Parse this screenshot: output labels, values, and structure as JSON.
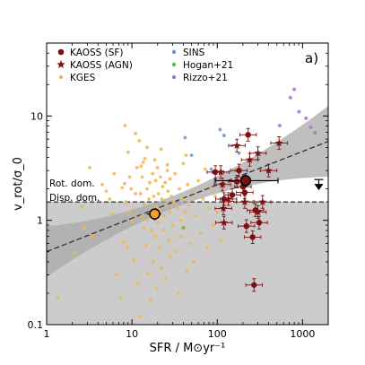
{
  "chart_data": {
    "type": "scatter",
    "panel_label": "a)",
    "xlabel": "SFR / M⊙yr⁻¹",
    "ylabel": "v_rot/σ_0",
    "xlim": [
      1,
      2000
    ],
    "ylim": [
      0.1,
      50
    ],
    "xscale": "log",
    "yscale": "log",
    "x_ticks": [
      {
        "value": 1,
        "label": "1"
      },
      {
        "value": 10,
        "label": "10"
      },
      {
        "value": 100,
        "label": "100"
      },
      {
        "value": 1000,
        "label": "1000"
      }
    ],
    "y_ticks": [
      {
        "value": 0.1,
        "label": "0.1"
      },
      {
        "value": 1,
        "label": "1"
      },
      {
        "value": 10,
        "label": "10"
      }
    ],
    "threshold": {
      "y": 1.5,
      "label_above": "Rot. dom.",
      "label_below": "Disp. dom."
    },
    "legend": {
      "placement": "top",
      "entries": [
        {
          "label": "KAOSS (SF)",
          "marker": "circle",
          "color": "#7a1010"
        },
        {
          "label": "KAOSS (AGN)",
          "marker": "star",
          "color": "#7a1010"
        },
        {
          "label": "KGES",
          "marker": "dot",
          "color": "#f0b455"
        },
        {
          "label": "SINS",
          "marker": "dot",
          "color": "#6b8fcf"
        },
        {
          "label": "Hogan+21",
          "marker": "dot",
          "color": "#5cb85c"
        },
        {
          "label": "Rizzo+21",
          "marker": "dot",
          "color": "#a573c9"
        }
      ]
    },
    "colors": {
      "kaoss": "#7a1010",
      "kges": "#f0b455",
      "sins": "#6b8fcf",
      "hogan": "#5cb85c",
      "rizzo": "#a573c9",
      "fit_band": "#a9a9a9",
      "disp_region": "#cccccc",
      "kges_median": "#f0a030"
    },
    "fit": {
      "slope": 0.32,
      "intercept_log": -0.3,
      "band_halfwidth_dex_at_pivot": 0.06,
      "band_halfwidth_dex_at_edges": 0.34,
      "pivot_x": 30
    },
    "series": [
      {
        "name": "KGES",
        "points": [
          [
            1.35,
            0.18
          ],
          [
            2.1,
            0.48
          ],
          [
            2.6,
            1.35
          ],
          [
            2.8,
            0.85
          ],
          [
            3.2,
            3.2
          ],
          [
            3.5,
            0.7
          ],
          [
            4.5,
            2.2
          ],
          [
            5.5,
            1.6
          ],
          [
            6,
            1.15
          ],
          [
            6.6,
            0.3
          ],
          [
            7.4,
            0.18
          ],
          [
            7.7,
            2.05
          ],
          [
            8.2,
            2.25
          ],
          [
            8.5,
            1.5
          ],
          [
            8.8,
            0.55
          ],
          [
            9.2,
            1.2
          ],
          [
            9.4,
            2.6
          ],
          [
            9.8,
            2.0
          ],
          [
            10.2,
            1.0
          ],
          [
            10.5,
            0.42
          ],
          [
            10.8,
            1.3
          ],
          [
            11,
            1.8
          ],
          [
            11,
            6.8
          ],
          [
            11.5,
            3.2
          ],
          [
            11.8,
            0.25
          ],
          [
            12.2,
            5.8
          ],
          [
            12.3,
            0.12
          ],
          [
            12.6,
            1.8
          ],
          [
            13,
            1.1
          ],
          [
            13.2,
            2.6
          ],
          [
            13.5,
            3.6
          ],
          [
            13.8,
            0.85
          ],
          [
            14,
            1.4
          ],
          [
            14.2,
            3.9
          ],
          [
            14.6,
            0.58
          ],
          [
            15,
            2.0
          ],
          [
            15.2,
            1.0
          ],
          [
            15.5,
            0.31
          ],
          [
            15.8,
            1.6
          ],
          [
            16.2,
            2.3
          ],
          [
            16.5,
            0.17
          ],
          [
            16.8,
            1.2
          ],
          [
            17,
            0.8
          ],
          [
            17.5,
            2.8
          ],
          [
            17.8,
            0.4
          ],
          [
            18,
            1.7
          ],
          [
            18.5,
            1.05
          ],
          [
            18.8,
            0.7
          ],
          [
            19,
            2.4
          ],
          [
            19.3,
            1.35
          ],
          [
            19.6,
            0.22
          ],
          [
            19.9,
            3.2
          ],
          [
            20.2,
            0.95
          ],
          [
            20.5,
            1.8
          ],
          [
            21,
            0.55
          ],
          [
            21.3,
            1.25
          ],
          [
            21.6,
            2.6
          ],
          [
            22,
            0.35
          ],
          [
            22.5,
            1.6
          ],
          [
            23,
            2.1
          ],
          [
            23.5,
            0.8
          ],
          [
            24,
            1.1
          ],
          [
            24.5,
            2.3
          ],
          [
            25,
            0.28
          ],
          [
            25.5,
            1.4
          ],
          [
            26,
            3.0
          ],
          [
            26.5,
            1.9
          ],
          [
            27,
            0.65
          ],
          [
            27.5,
            1.2
          ],
          [
            28,
            2.5
          ],
          [
            28.5,
            0.45
          ],
          [
            29,
            1.7
          ],
          [
            30,
            0.9
          ],
          [
            31,
            1.5
          ],
          [
            32,
            2.8
          ],
          [
            33,
            0.5
          ],
          [
            34,
            1.3
          ],
          [
            35,
            0.2
          ],
          [
            36,
            2.0
          ],
          [
            37,
            1.0
          ],
          [
            38,
            0.7
          ],
          [
            39,
            1.6
          ],
          [
            40,
            3.5
          ],
          [
            41,
            0.85
          ],
          [
            42,
            1.2
          ],
          [
            43,
            4.2
          ],
          [
            44,
            0.33
          ],
          [
            45,
            2.2
          ],
          [
            47,
            1.4
          ],
          [
            49,
            0.6
          ],
          [
            51,
            1.9
          ],
          [
            53,
            0.4
          ],
          [
            56,
            1.1
          ],
          [
            60,
            2.4
          ],
          [
            64,
            0.75
          ],
          [
            68,
            1.6
          ],
          [
            72,
            3.1
          ],
          [
            76,
            0.55
          ],
          [
            80,
            1.3
          ],
          [
            84,
            2.0
          ],
          [
            90,
            0.9
          ],
          [
            95,
            1.7
          ],
          [
            100,
            1.2
          ],
          [
            110,
            0.65
          ],
          [
            120,
            2.2
          ],
          [
            130,
            1.5
          ],
          [
            8.3,
            8.1
          ],
          [
            9,
            4.5
          ],
          [
            12.8,
            3.3
          ],
          [
            15,
            5.0
          ],
          [
            18.5,
            3.8
          ],
          [
            22,
            4.8
          ],
          [
            26,
            3.4
          ],
          [
            8,
            0.62
          ],
          [
            6.2,
            2.8
          ],
          [
            5,
            1.9
          ]
        ]
      },
      {
        "name": "SINS",
        "points": [
          [
            42,
            6.2
          ],
          [
            50,
            4.2
          ],
          [
            85,
            3.1
          ],
          [
            108,
            7.4
          ],
          [
            120,
            6.5
          ],
          [
            150,
            5.2
          ],
          [
            180,
            4.4
          ],
          [
            95,
            2.4
          ]
        ]
      },
      {
        "name": "Hogan+21",
        "points": [
          [
            40,
            0.85
          ],
          [
            165,
            3.0
          ]
        ]
      },
      {
        "name": "Rizzo+21",
        "points": [
          [
            720,
            15.0
          ],
          [
            910,
            11.0
          ],
          [
            1100,
            9.5
          ],
          [
            1250,
            7.8
          ],
          [
            1400,
            6.9
          ],
          [
            800,
            18.0
          ],
          [
            540,
            8.1
          ]
        ]
      },
      {
        "name": "KAOSS (SF)",
        "points": [
          [
            95,
            2.9
          ],
          [
            150,
            1.75
          ],
          [
            170,
            2.35
          ],
          [
            180,
            3.0
          ],
          [
            210,
            1.85
          ],
          [
            220,
            0.88
          ],
          [
            230,
            6.6
          ],
          [
            260,
            0.69
          ],
          [
            280,
            1.25
          ],
          [
            270,
            0.24
          ],
          [
            310,
            0.95
          ],
          [
            200,
            2.1
          ],
          [
            120,
            1.6
          ]
        ]
      },
      {
        "name": "KAOSS (AGN)",
        "points": [
          [
            110,
            2.9
          ],
          [
            115,
            2.2
          ],
          [
            118,
            1.3
          ],
          [
            120,
            0.95
          ],
          [
            135,
            1.6
          ],
          [
            170,
            5.2
          ],
          [
            210,
            1.5
          ],
          [
            240,
            3.8
          ],
          [
            300,
            4.4
          ],
          [
            340,
            1.5
          ],
          [
            300,
            1.2
          ],
          [
            400,
            3.0
          ],
          [
            530,
            5.5
          ]
        ]
      },
      {
        "name": "KGES median",
        "points": [
          [
            18.5,
            1.15
          ]
        ],
        "x_err": [
          3.5
        ],
        "y_err": [
          0.15
        ]
      },
      {
        "name": "KAOSS median",
        "points": [
          [
            215,
            2.4
          ]
        ],
        "x_err_low": [
          120
        ],
        "x_err_high": [
          300
        ],
        "y_err": [
          0.35
        ]
      },
      {
        "name": "Upper limit",
        "points": [
          [
            1550,
            2.1
          ]
        ]
      }
    ]
  }
}
